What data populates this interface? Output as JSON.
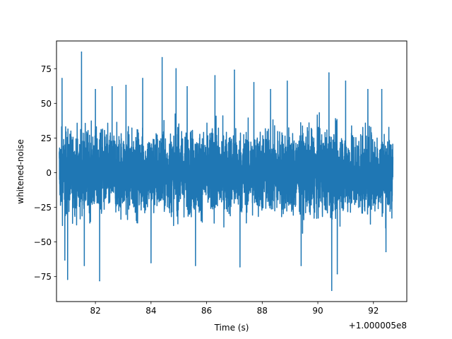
{
  "chart_data": {
    "type": "line",
    "title": "",
    "xlabel": "Time (s)",
    "ylabel": "whitened-noise",
    "x_offset_label": "+1.000005e8",
    "xlim": [
      80.6,
      93.2
    ],
    "ylim": [
      -93,
      95
    ],
    "xticks": [
      82,
      84,
      86,
      88,
      90,
      92
    ],
    "xtick_labels": [
      "82",
      "84",
      "86",
      "88",
      "90",
      "92"
    ],
    "yticks": [
      75,
      50,
      25,
      0,
      -25,
      -50,
      -75
    ],
    "ytick_labels": [
      "75",
      "50",
      "25",
      "0",
      "−25",
      "−50",
      "−75"
    ],
    "grid": false,
    "series": [
      {
        "color": "#1f77b4",
        "x_range": [
          80.7,
          92.7
        ],
        "typical_range": [
          -40,
          40
        ],
        "notable_points": [
          {
            "x": 80.8,
            "y": 68
          },
          {
            "x": 80.9,
            "y": -63
          },
          {
            "x": 81.0,
            "y": -77
          },
          {
            "x": 81.5,
            "y": 87
          },
          {
            "x": 81.6,
            "y": -67
          },
          {
            "x": 82.0,
            "y": 60
          },
          {
            "x": 82.15,
            "y": -78
          },
          {
            "x": 82.6,
            "y": 62
          },
          {
            "x": 83.1,
            "y": 63
          },
          {
            "x": 83.7,
            "y": 68
          },
          {
            "x": 84.0,
            "y": -65
          },
          {
            "x": 84.4,
            "y": 83
          },
          {
            "x": 84.9,
            "y": 75
          },
          {
            "x": 85.3,
            "y": 62
          },
          {
            "x": 85.6,
            "y": -67
          },
          {
            "x": 86.3,
            "y": 70
          },
          {
            "x": 87.0,
            "y": 74
          },
          {
            "x": 87.2,
            "y": -68
          },
          {
            "x": 87.7,
            "y": 65
          },
          {
            "x": 88.3,
            "y": 60
          },
          {
            "x": 88.9,
            "y": 66
          },
          {
            "x": 89.4,
            "y": -67
          },
          {
            "x": 90.4,
            "y": 72
          },
          {
            "x": 90.5,
            "y": -85
          },
          {
            "x": 90.7,
            "y": -73
          },
          {
            "x": 91.0,
            "y": 66
          },
          {
            "x": 91.8,
            "y": 60
          },
          {
            "x": 92.3,
            "y": 60
          },
          {
            "x": 92.45,
            "y": -57
          }
        ]
      }
    ]
  }
}
